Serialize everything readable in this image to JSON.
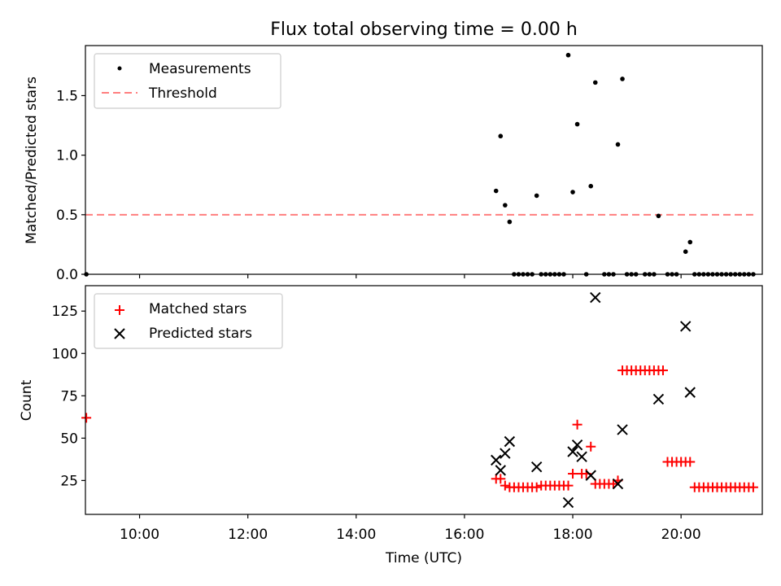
{
  "title": "Flux total observing time = 0.00 h",
  "colors": {
    "measurement": "#000000",
    "threshold": "#ff7f7f",
    "matched": "#ff0000",
    "predicted": "#000000"
  },
  "chart_data": [
    {
      "type": "scatter",
      "ylabel": "Matched/Predicted stars",
      "xlim": [
        "09:00",
        "21:30"
      ],
      "ylim": [
        0,
        1.92
      ],
      "yticks": [
        "0.0",
        "0.5",
        "1.0",
        "1.5"
      ],
      "legend_position": "top-left",
      "series": [
        {
          "name": "Measurements",
          "type": "scatter",
          "x": [
            "09:01",
            "16:35",
            "16:40",
            "16:45",
            "16:50",
            "17:20",
            "17:55",
            "18:00",
            "18:05",
            "18:20",
            "18:25",
            "18:50",
            "18:55",
            "19:35",
            "20:05",
            "20:10",
            "16:55",
            "17:00",
            "17:05",
            "17:10",
            "17:15",
            "17:25",
            "17:30",
            "17:35",
            "17:40",
            "17:45",
            "17:50",
            "18:15",
            "18:35",
            "18:40",
            "18:45",
            "19:00",
            "19:05",
            "19:10",
            "19:20",
            "19:25",
            "19:30",
            "19:45",
            "19:50",
            "19:55",
            "20:15",
            "20:20",
            "20:25",
            "20:30",
            "20:35",
            "20:40",
            "20:45",
            "20:50",
            "20:55",
            "21:00",
            "21:05",
            "21:10",
            "21:15",
            "21:20"
          ],
          "y": [
            0.0,
            0.7,
            1.16,
            0.58,
            0.44,
            0.66,
            1.84,
            0.69,
            1.26,
            0.74,
            1.61,
            1.09,
            1.64,
            0.49,
            0.19,
            0.27,
            0,
            0,
            0,
            0,
            0,
            0,
            0,
            0,
            0,
            0,
            0,
            0,
            0,
            0,
            0,
            0,
            0,
            0,
            0,
            0,
            0,
            0,
            0,
            0,
            0,
            0,
            0,
            0,
            0,
            0,
            0,
            0,
            0,
            0,
            0,
            0,
            0,
            0
          ]
        },
        {
          "name": "Threshold",
          "type": "line",
          "x": [
            "09:00",
            "21:20"
          ],
          "y": [
            0.5,
            0.5
          ]
        }
      ]
    },
    {
      "type": "scatter",
      "ylabel": "Count",
      "xlabel": "Time (UTC)",
      "xlim": [
        "09:00",
        "21:30"
      ],
      "ylim": [
        5,
        140
      ],
      "yticks": [
        "25",
        "50",
        "75",
        "100",
        "125"
      ],
      "xticks": [
        "10:00",
        "12:00",
        "14:00",
        "16:00",
        "18:00",
        "20:00"
      ],
      "legend_position": "top-left",
      "series": [
        {
          "name": "Matched stars",
          "marker": "+",
          "x": [
            "09:01",
            "16:35",
            "16:40",
            "16:45",
            "16:50",
            "16:55",
            "17:00",
            "17:05",
            "17:10",
            "17:15",
            "17:20",
            "17:25",
            "17:30",
            "17:35",
            "17:40",
            "17:45",
            "17:50",
            "17:55",
            "18:00",
            "18:05",
            "18:10",
            "18:15",
            "18:20",
            "18:25",
            "18:30",
            "18:35",
            "18:40",
            "18:45",
            "18:50",
            "18:55",
            "19:00",
            "19:05",
            "19:10",
            "19:15",
            "19:20",
            "19:25",
            "19:30",
            "19:35",
            "19:40",
            "19:45",
            "19:50",
            "19:55",
            "20:00",
            "20:05",
            "20:10",
            "20:15",
            "20:20",
            "20:25",
            "20:30",
            "20:35",
            "20:40",
            "20:45",
            "20:50",
            "20:55",
            "21:00",
            "21:05",
            "21:10",
            "21:15",
            "21:20"
          ],
          "y": [
            62,
            26,
            26,
            22,
            21,
            21,
            21,
            21,
            21,
            21,
            21,
            22,
            22,
            22,
            22,
            22,
            22,
            22,
            29,
            58,
            29,
            29,
            45,
            23,
            23,
            23,
            23,
            23,
            25,
            90,
            90,
            90,
            90,
            90,
            90,
            90,
            90,
            90,
            90,
            36,
            36,
            36,
            36,
            36,
            36,
            21,
            21,
            21,
            21,
            21,
            21,
            21,
            21,
            21,
            21,
            21,
            21,
            21,
            21
          ]
        },
        {
          "name": "Predicted stars",
          "marker": "x",
          "x": [
            "16:35",
            "16:40",
            "16:45",
            "16:50",
            "17:20",
            "17:55",
            "18:00",
            "18:05",
            "18:10",
            "18:20",
            "18:25",
            "18:50",
            "18:55",
            "19:35",
            "20:05",
            "20:10"
          ],
          "y": [
            37,
            31,
            41,
            48,
            33,
            12,
            42,
            46,
            39,
            28,
            133,
            23,
            55,
            73,
            116,
            77
          ]
        }
      ]
    }
  ]
}
